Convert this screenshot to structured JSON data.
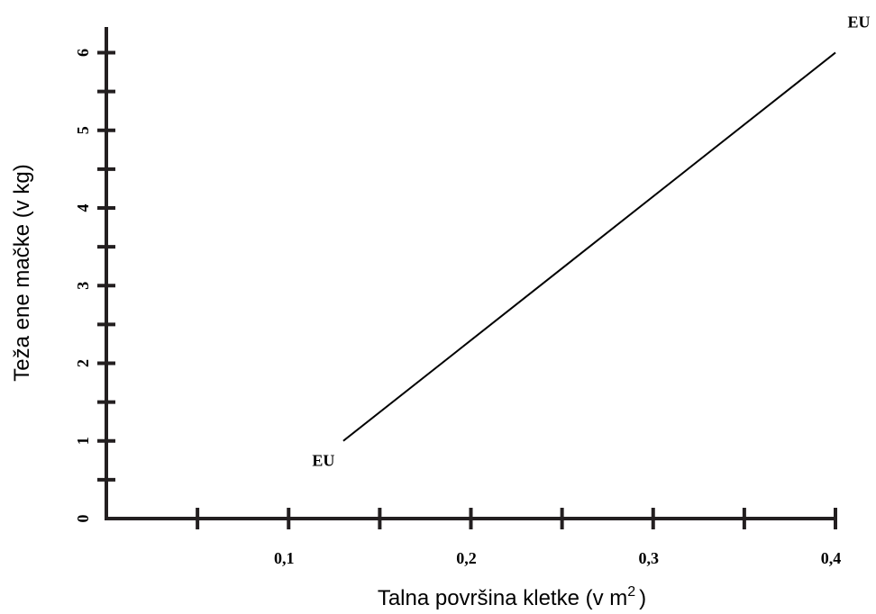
{
  "chart_data": {
    "type": "line",
    "ylabel": "Teža ene mačke (v kg)",
    "xlabel": [
      "Talna površina kletke (v m",
      "2",
      ")"
    ],
    "series": [
      {
        "color": "#000000",
        "x": [
          0.13,
          0.4
        ],
        "values": [
          1,
          6
        ]
      }
    ],
    "annotations": [
      "EU",
      "EU"
    ],
    "xlim": [
      0,
      0.4
    ],
    "xticks": [
      {
        "value": 0.1,
        "label": "0,1"
      },
      {
        "value": 0.2,
        "label": "0,2"
      },
      {
        "value": 0.3,
        "label": "0,3"
      },
      {
        "value": 0.4,
        "label": "0,4"
      }
    ],
    "xminor": [
      0.05,
      0.15,
      0.25,
      0.35
    ],
    "ylim": [
      0,
      6.33
    ],
    "yticks": [
      0,
      1,
      2,
      3,
      4,
      5,
      6
    ],
    "yminor": [
      0.5,
      1.5,
      2.5,
      3.5,
      4.5,
      5.5
    ]
  }
}
